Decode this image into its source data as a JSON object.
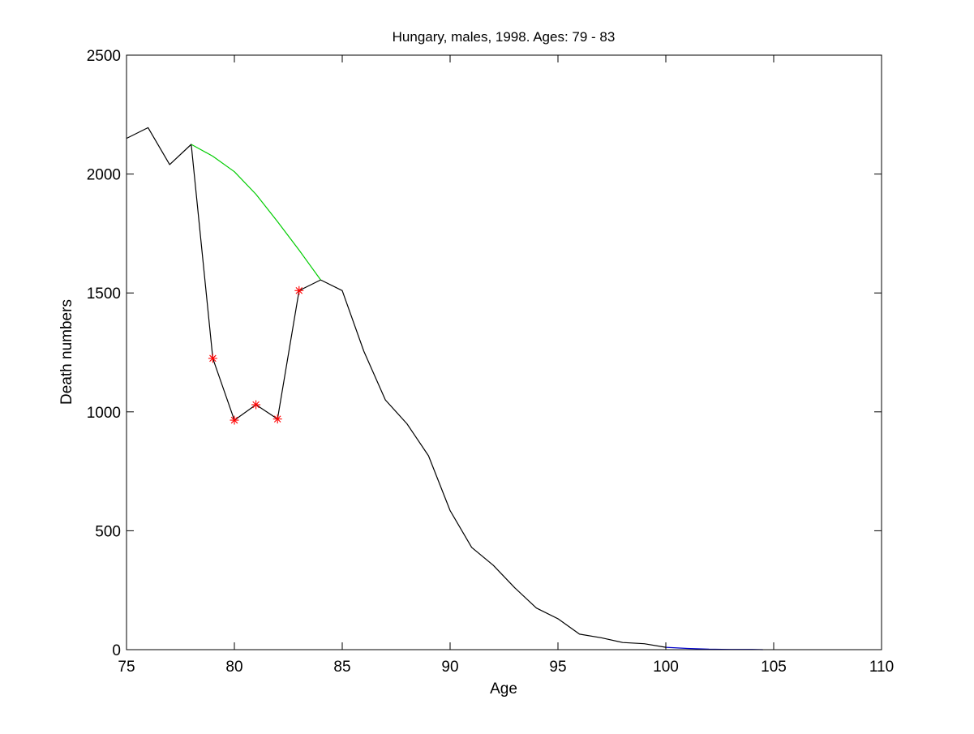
{
  "chart_data": {
    "type": "line",
    "title": "Hungary, males, 1998. Ages: 79 - 83",
    "xlabel": "Age",
    "ylabel": "Death numbers",
    "xlim": [
      75,
      110
    ],
    "ylim": [
      0,
      2500
    ],
    "xticks": [
      75,
      80,
      85,
      90,
      95,
      100,
      105,
      110
    ],
    "yticks": [
      0,
      500,
      1000,
      1500,
      2000,
      2500
    ],
    "grid": false,
    "series": [
      {
        "color": "#000000",
        "marker": "none",
        "x": [
          75,
          76,
          77,
          78,
          79,
          80,
          81,
          82,
          83,
          84,
          85,
          86,
          87,
          88,
          89,
          90,
          91,
          92,
          93,
          94,
          95,
          96,
          97,
          98,
          99,
          100
        ],
        "y": [
          2150,
          2195,
          2040,
          2125,
          1225,
          965,
          1030,
          970,
          1510,
          1555,
          1510,
          1255,
          1050,
          950,
          815,
          585,
          430,
          355,
          260,
          175,
          130,
          65,
          50,
          30,
          25,
          10
        ]
      },
      {
        "color": "#00cc00",
        "marker": "none",
        "x": [
          78,
          79,
          80,
          81,
          82,
          83,
          84
        ],
        "y": [
          2125,
          2075,
          2010,
          1915,
          1800,
          1680,
          1555
        ]
      },
      {
        "color": "#0000cc",
        "marker": "none",
        "x": [
          100,
          101,
          102,
          103,
          104,
          104.5
        ],
        "y": [
          10,
          5,
          2,
          1,
          1,
          0
        ]
      },
      {
        "color": "#ff0000",
        "marker": "asterisk",
        "line": false,
        "x": [
          79,
          80,
          81,
          82,
          83
        ],
        "y": [
          1225,
          965,
          1030,
          970,
          1510
        ]
      }
    ]
  }
}
